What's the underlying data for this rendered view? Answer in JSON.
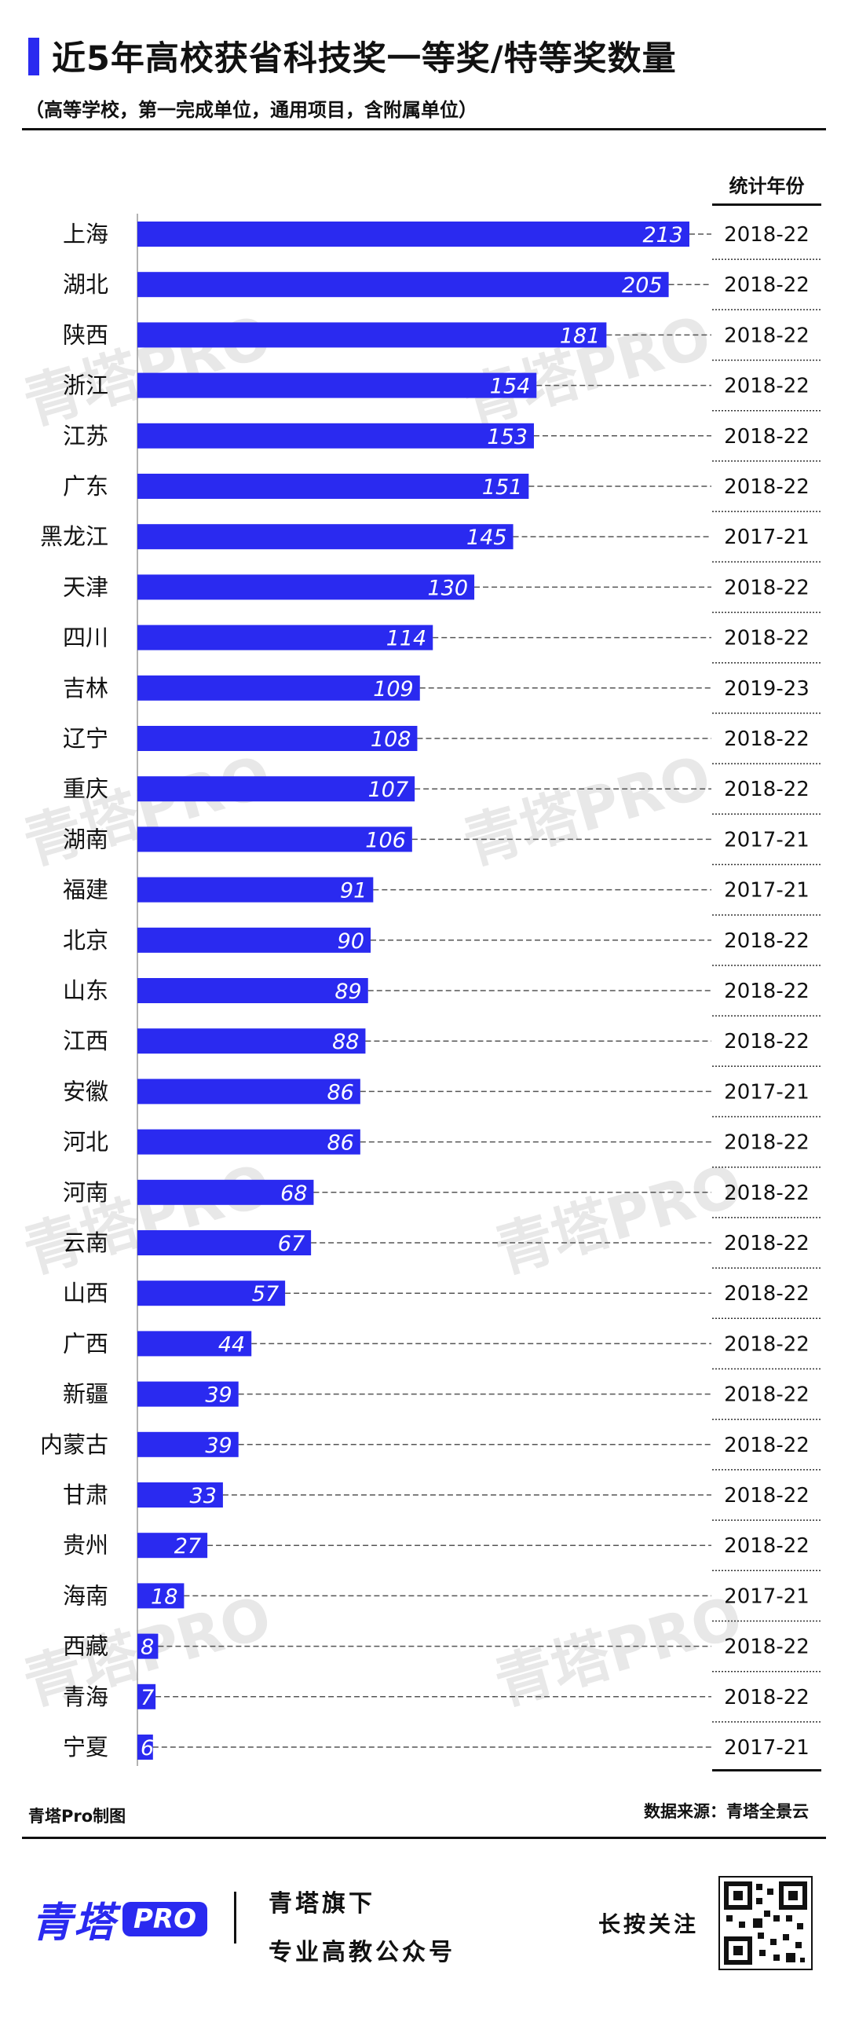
{
  "header": {
    "title": "近5年高校获省科技奖一等奖/特等奖数量",
    "subtitle": "（高等学校，第一完成单位，通用项目，含附属单位）"
  },
  "chart_data": {
    "type": "bar",
    "orientation": "horizontal",
    "title": "近5年高校获省科技奖一等奖/特等奖数量",
    "subtitle": "（高等学校，第一完成单位，通用项目，含附属单位）",
    "column_header": "统计年份",
    "categories": [
      "上海",
      "湖北",
      "陕西",
      "浙江",
      "江苏",
      "广东",
      "黑龙江",
      "天津",
      "四川",
      "吉林",
      "辽宁",
      "重庆",
      "湖南",
      "福建",
      "北京",
      "山东",
      "江西",
      "安徽",
      "河北",
      "河南",
      "云南",
      "山西",
      "广西",
      "新疆",
      "内蒙古",
      "甘肃",
      "贵州",
      "海南",
      "西藏",
      "青海",
      "宁夏"
    ],
    "values": [
      213,
      205,
      181,
      154,
      153,
      151,
      145,
      130,
      114,
      109,
      108,
      107,
      106,
      91,
      90,
      89,
      88,
      86,
      86,
      68,
      67,
      57,
      44,
      39,
      39,
      33,
      27,
      18,
      8,
      7,
      6
    ],
    "years": [
      "2018-22",
      "2018-22",
      "2018-22",
      "2018-22",
      "2018-22",
      "2018-22",
      "2017-21",
      "2018-22",
      "2018-22",
      "2019-23",
      "2018-22",
      "2018-22",
      "2017-21",
      "2017-21",
      "2018-22",
      "2018-22",
      "2018-22",
      "2017-21",
      "2018-22",
      "2018-22",
      "2018-22",
      "2018-22",
      "2018-22",
      "2018-22",
      "2018-22",
      "2018-22",
      "2018-22",
      "2017-21",
      "2018-22",
      "2018-22",
      "2017-21"
    ],
    "xlim": [
      0,
      213
    ],
    "grid": false,
    "bar_color": "#2a2af0"
  },
  "watermark": "青塔PRO",
  "footer": {
    "credit": "青塔Pro制图",
    "source": "数据来源：青塔全景云"
  },
  "brand": {
    "name": "青塔",
    "pro": "PRO",
    "tagline1": "青塔旗下",
    "tagline2": "专业高教公众号",
    "follow": "长按关注"
  },
  "colors": {
    "accent": "#2a2af0",
    "text": "#111111",
    "watermark": "#e8e8e8"
  }
}
